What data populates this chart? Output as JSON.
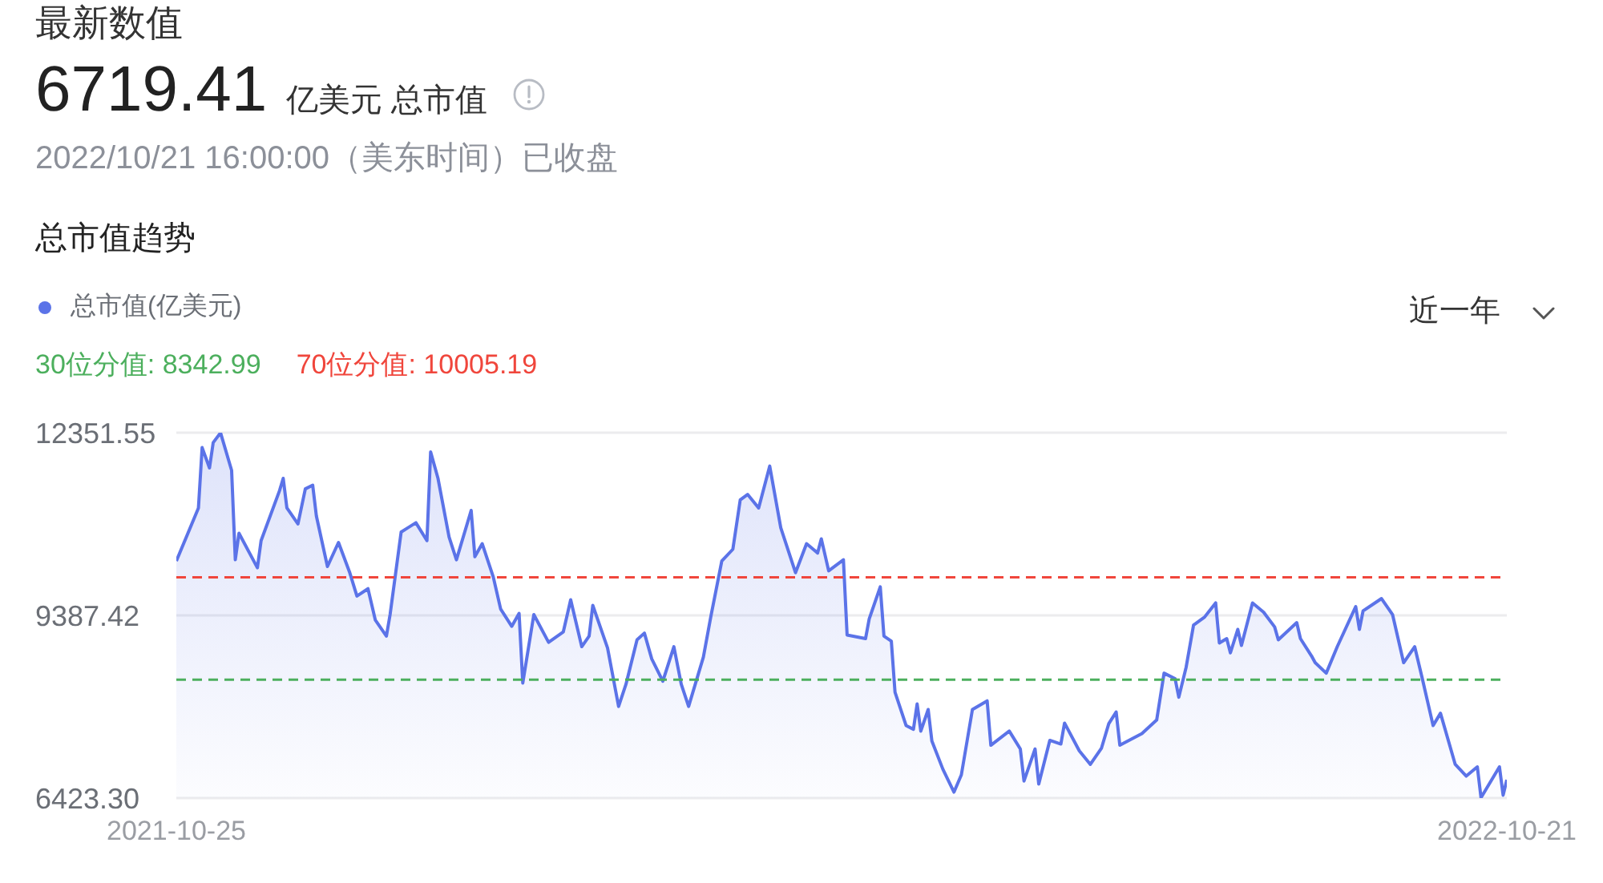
{
  "chart_data": {
    "type": "area",
    "title": "总市值趋势",
    "annotations": [
      "最新数值",
      "6719.41",
      "亿美元 总市值",
      "2022/10/21 16:00:00（美东时间）已收盘",
      "近一年"
    ],
    "x": [
      "2021-10-25",
      "2021-10-31",
      "2021-11-01",
      "2021-11-03",
      "2021-11-04",
      "2021-11-06",
      "2021-11-09",
      "2021-11-10",
      "2021-11-11",
      "2021-11-16",
      "2021-11-17",
      "2021-11-22",
      "2021-11-23",
      "2021-11-24",
      "2021-11-27",
      "2021-11-29",
      "2021-12-01",
      "2021-12-02",
      "2021-12-05",
      "2021-12-08",
      "2021-12-11",
      "2021-12-13",
      "2021-12-16",
      "2021-12-18",
      "2021-12-21",
      "2021-12-22",
      "2021-12-25",
      "2021-12-29",
      "2022-01-01",
      "2022-01-02",
      "2022-01-04",
      "2022-01-07",
      "2022-01-09",
      "2022-01-13",
      "2022-01-14",
      "2022-01-16",
      "2022-01-19",
      "2022-01-21",
      "2022-01-24",
      "2022-01-26",
      "2022-01-27",
      "2022-01-30",
      "2022-02-03",
      "2022-02-07",
      "2022-02-09",
      "2022-02-12",
      "2022-02-14",
      "2022-02-15",
      "2022-02-19",
      "2022-02-22",
      "2022-02-24",
      "2022-02-27",
      "2022-03-01",
      "2022-03-03",
      "2022-03-06",
      "2022-03-09",
      "2022-03-11",
      "2022-03-13",
      "2022-03-17",
      "2022-03-19",
      "2022-03-22",
      "2022-03-25",
      "2022-03-27",
      "2022-03-29",
      "2022-04-01",
      "2022-04-04",
      "2022-04-07",
      "2022-04-11",
      "2022-04-14",
      "2022-04-17",
      "2022-04-18",
      "2022-04-20",
      "2022-04-24",
      "2022-04-25",
      "2022-04-30",
      "2022-05-01",
      "2022-05-04",
      "2022-05-05",
      "2022-05-07",
      "2022-05-08",
      "2022-05-11",
      "2022-05-13",
      "2022-05-14",
      "2022-05-15",
      "2022-05-17",
      "2022-05-18",
      "2022-05-21",
      "2022-05-24",
      "2022-05-26",
      "2022-05-29",
      "2022-06-02",
      "2022-06-03",
      "2022-06-08",
      "2022-06-11",
      "2022-06-12",
      "2022-06-15",
      "2022-06-16",
      "2022-06-19",
      "2022-06-22",
      "2022-06-23",
      "2022-06-27",
      "2022-06-30",
      "2022-07-03",
      "2022-07-05",
      "2022-07-07",
      "2022-07-08",
      "2022-07-14",
      "2022-07-18",
      "2022-07-20",
      "2022-07-23",
      "2022-07-24",
      "2022-07-26",
      "2022-07-28",
      "2022-07-31",
      "2022-08-03",
      "2022-08-04",
      "2022-08-06",
      "2022-08-07",
      "2022-08-09",
      "2022-08-10",
      "2022-08-13",
      "2022-08-16",
      "2022-08-19",
      "2022-08-20",
      "2022-08-25",
      "2022-08-26",
      "2022-08-29",
      "2022-08-30",
      "2022-09-02",
      "2022-09-05",
      "2022-09-10",
      "2022-09-11",
      "2022-09-12",
      "2022-09-17",
      "2022-09-20",
      "2022-09-23",
      "2022-09-26",
      "2022-09-28",
      "2022-10-01",
      "2022-10-03",
      "2022-10-07",
      "2022-10-10",
      "2022-10-13",
      "2022-10-14",
      "2022-10-19",
      "2022-10-20",
      "2022-10-21"
    ],
    "series": [
      {
        "name": "总市值(亿美元)",
        "color": "#5b73e8",
        "values": [
          10270,
          11130,
          12110,
          11780,
          12190,
          12350,
          11740,
          10290,
          10720,
          10160,
          10600,
          11410,
          11610,
          11130,
          10870,
          11440,
          11500,
          11000,
          10180,
          10570,
          10090,
          9700,
          9820,
          9310,
          9050,
          9400,
          10740,
          10890,
          10600,
          12040,
          11610,
          10660,
          10290,
          11090,
          10340,
          10550,
          10010,
          9490,
          9210,
          9420,
          8290,
          9400,
          8950,
          9120,
          9640,
          8880,
          9050,
          9550,
          8860,
          7910,
          8270,
          8990,
          9100,
          8680,
          8320,
          8880,
          8270,
          7910,
          8710,
          9360,
          10270,
          10460,
          11260,
          11350,
          11130,
          11810,
          10810,
          10080,
          10550,
          10400,
          10630,
          10110,
          10290,
          9070,
          9010,
          9330,
          9850,
          9050,
          8970,
          8140,
          7600,
          7540,
          7950,
          7510,
          7860,
          7350,
          6890,
          6520,
          6800,
          7860,
          8000,
          7280,
          7510,
          7220,
          6700,
          7220,
          6650,
          7360,
          7300,
          7640,
          7190,
          6970,
          7230,
          7630,
          7820,
          7280,
          7470,
          7690,
          8450,
          8360,
          8060,
          8550,
          9230,
          9360,
          9590,
          8940,
          9010,
          8780,
          9160,
          8900,
          9590,
          9440,
          9200,
          8990,
          9270,
          9010,
          8730,
          8620,
          8450,
          8880,
          9530,
          9160,
          9460,
          9660,
          9400,
          8620,
          8880,
          8380,
          7600,
          7800,
          6970,
          6780,
          6930,
          6430,
          6930,
          6470,
          6720
        ]
      }
    ],
    "xlim": [
      "2021-10-25",
      "2022-10-21"
    ],
    "xticks": [
      "2021-10-25",
      "2022-10-21"
    ],
    "ylim": [
      6423.3,
      12351.55
    ],
    "yticks": [
      {
        "value": 6423.3,
        "label": "6423.30"
      },
      9387.42,
      12351.55
    ],
    "grid": "y",
    "legend": "top left",
    "ref_lines": [
      {
        "axis": "y",
        "value": 8342.99,
        "label": "30位分值: 8342.99",
        "color": "#4caf5d",
        "line_style": "dashed"
      },
      {
        "axis": "y",
        "value": 10005.19,
        "label": "70位分值: 10005.19",
        "color": "#f0463c",
        "line_style": "dashed"
      }
    ]
  }
}
